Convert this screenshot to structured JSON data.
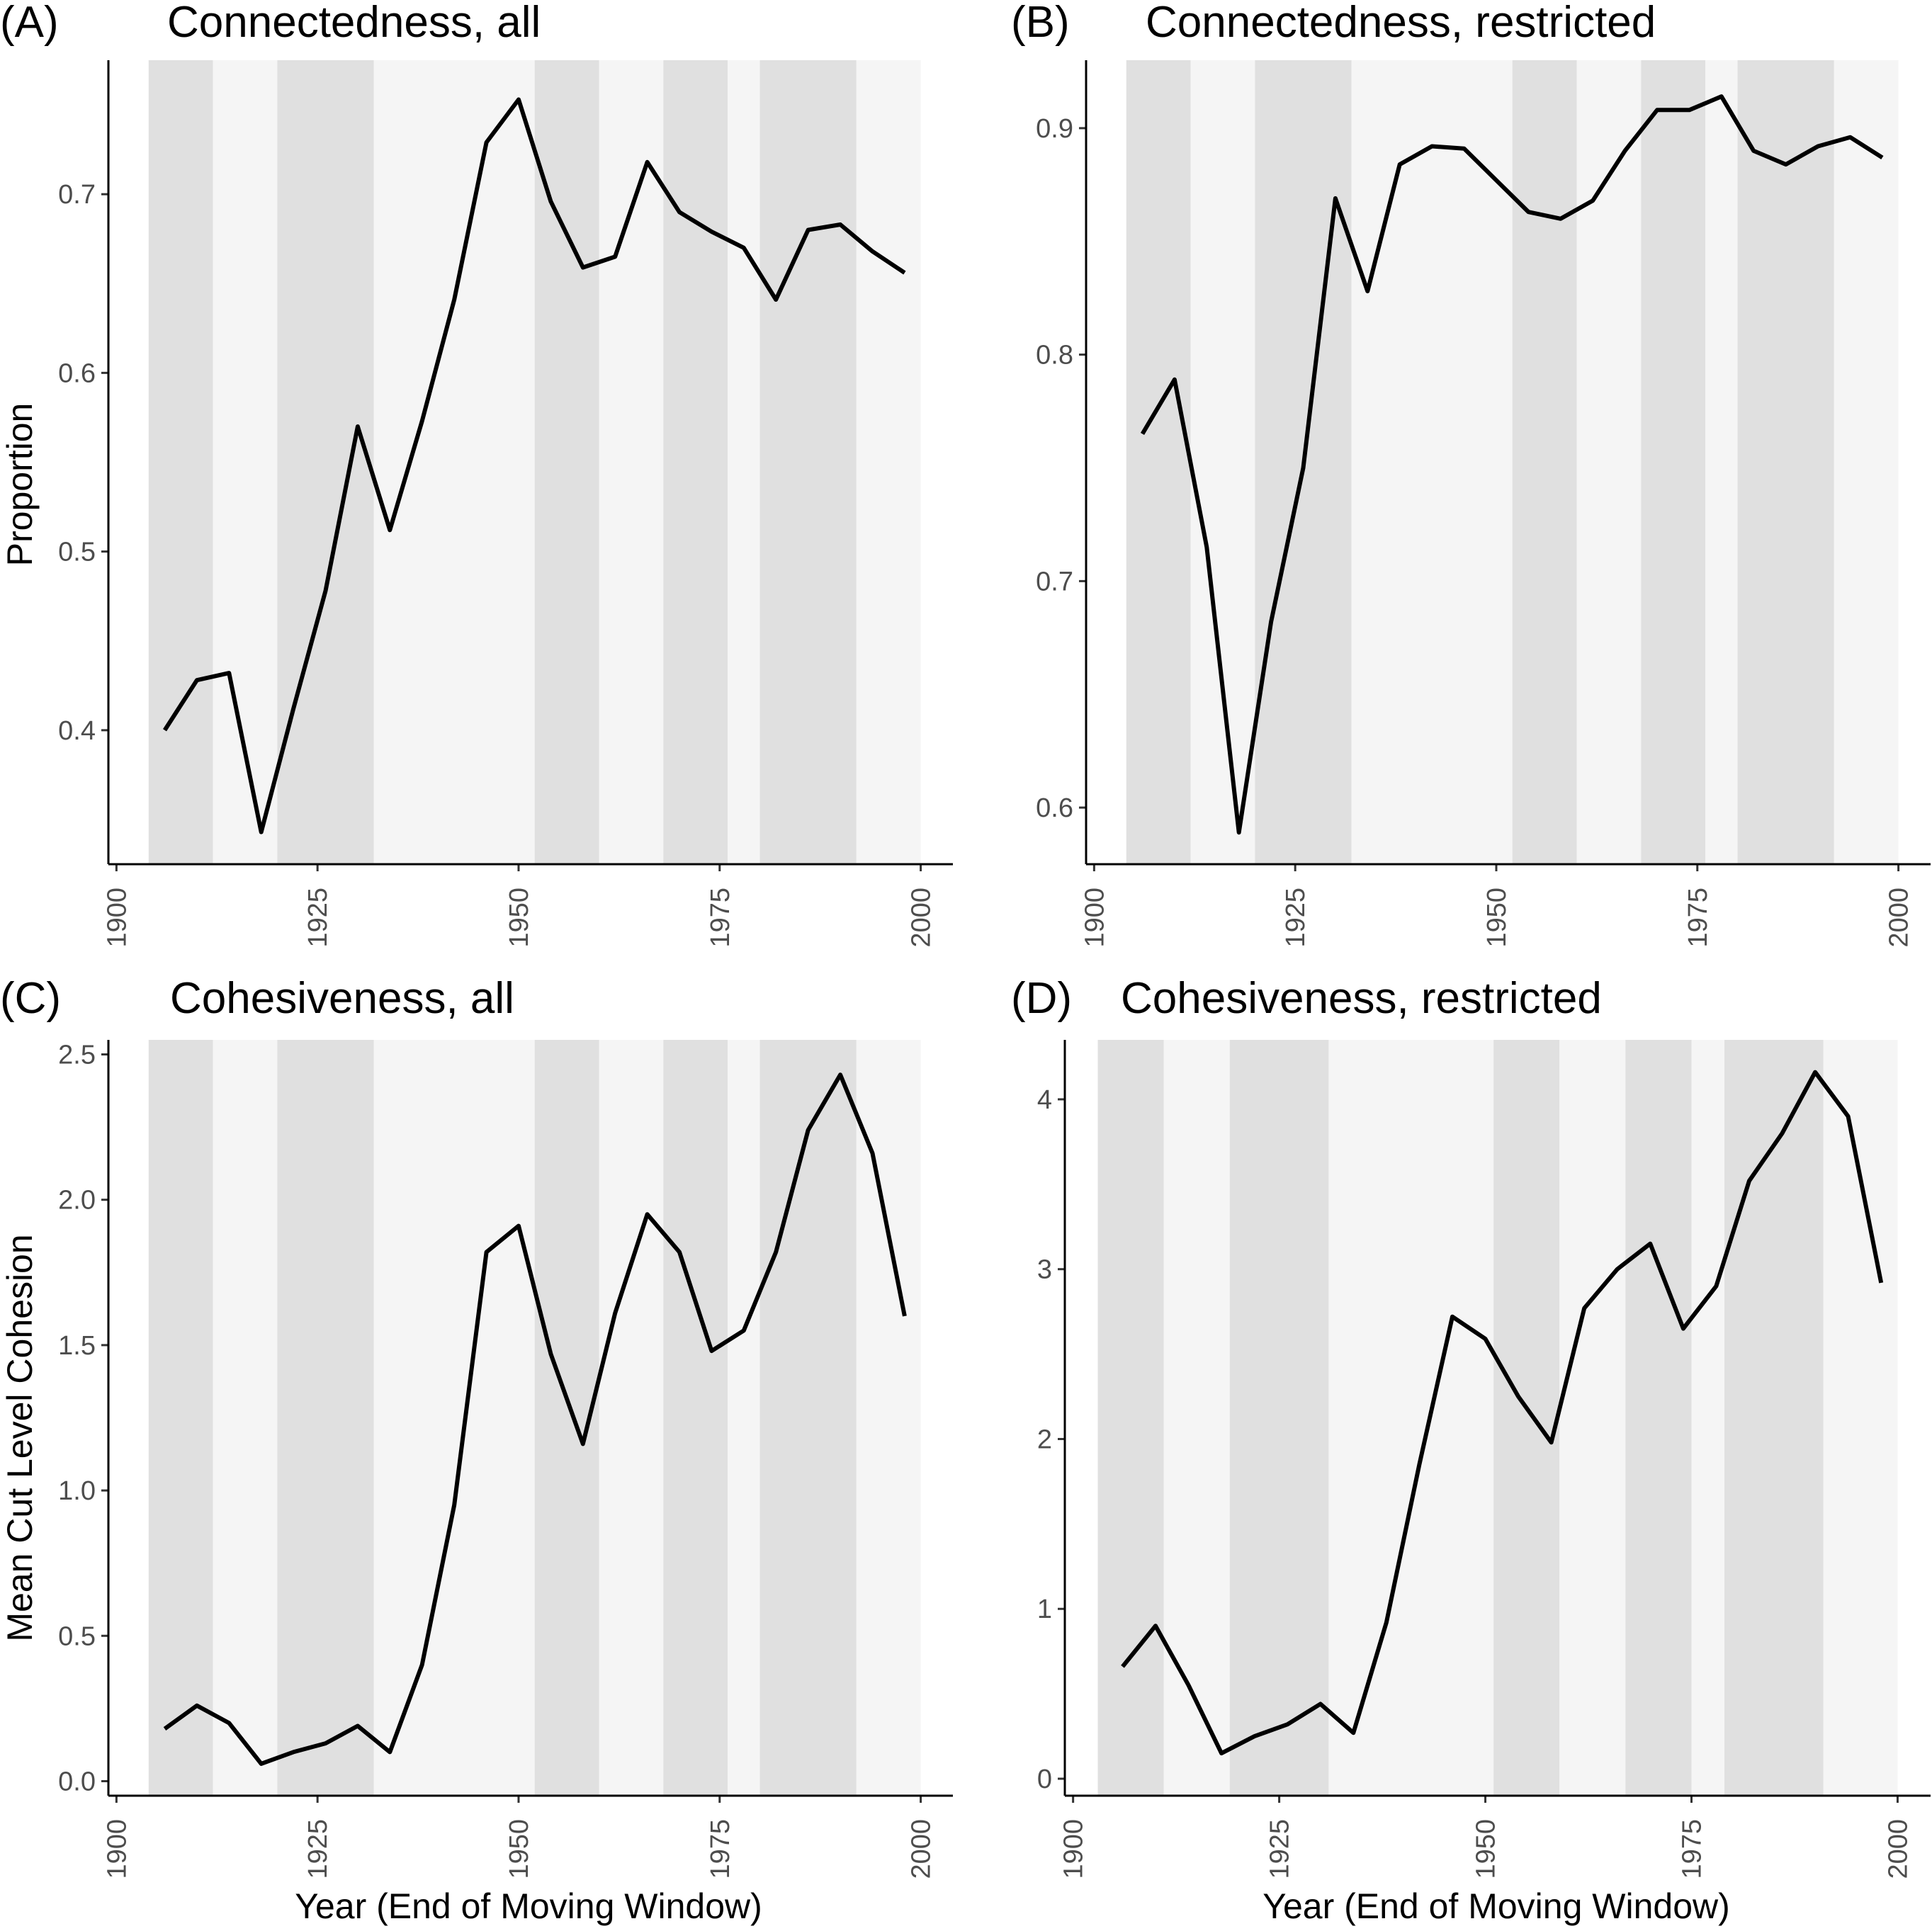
{
  "figure": {
    "x_axis_title": "Year (End of Moving Window)",
    "y_axis_title_top": "Proportion",
    "y_axis_title_bottom": "Mean Cut Level Cohesion"
  },
  "colors": {
    "line": "#000000",
    "band_light": "#f5f5f5",
    "band_dark": "#e0e0e0"
  },
  "chart_data": [
    {
      "id": "A",
      "type": "line",
      "panel_label": "(A)",
      "title": "Connectedness, all",
      "xlim": [
        1899,
        2004
      ],
      "ylim": [
        0.325,
        0.775
      ],
      "x_ticks": [
        1900,
        1925,
        1950,
        1975,
        2000
      ],
      "y_ticks": [
        0.4,
        0.5,
        0.6,
        0.7
      ],
      "y_tick_labels": [
        "0.4",
        "0.5",
        "0.6",
        "0.7"
      ],
      "bands": [
        [
          1904,
          1912,
          "dark"
        ],
        [
          1912,
          1920,
          "light"
        ],
        [
          1920,
          1932,
          "dark"
        ],
        [
          1932,
          1952,
          "light"
        ],
        [
          1952,
          1960,
          "dark"
        ],
        [
          1960,
          1968,
          "light"
        ],
        [
          1968,
          1976,
          "dark"
        ],
        [
          1976,
          1980,
          "light"
        ],
        [
          1980,
          1992,
          "dark"
        ],
        [
          1992,
          2000,
          "light"
        ]
      ],
      "x": [
        1906,
        1910,
        1914,
        1918,
        1922,
        1926,
        1930,
        1934,
        1938,
        1942,
        1946,
        1950,
        1954,
        1958,
        1962,
        1966,
        1970,
        1974,
        1978,
        1982,
        1986,
        1990,
        1994,
        1998
      ],
      "values": [
        0.4,
        0.428,
        0.432,
        0.343,
        0.412,
        0.478,
        0.57,
        0.512,
        0.573,
        0.641,
        0.729,
        0.753,
        0.696,
        0.659,
        0.665,
        0.718,
        0.69,
        0.679,
        0.67,
        0.641,
        0.68,
        0.683,
        0.668,
        0.656
      ]
    },
    {
      "id": "B",
      "type": "line",
      "panel_label": "(B)",
      "title": "Connectedness, restricted",
      "xlim": [
        1899,
        2004
      ],
      "ylim": [
        0.575,
        0.93
      ],
      "x_ticks": [
        1900,
        1925,
        1950,
        1975,
        2000
      ],
      "y_ticks": [
        0.6,
        0.7,
        0.8,
        0.9
      ],
      "y_tick_labels": [
        "0.6",
        "0.7",
        "0.8",
        "0.9"
      ],
      "bands": [
        [
          1904,
          1912,
          "dark"
        ],
        [
          1912,
          1920,
          "light"
        ],
        [
          1920,
          1932,
          "dark"
        ],
        [
          1932,
          1952,
          "light"
        ],
        [
          1952,
          1960,
          "dark"
        ],
        [
          1960,
          1968,
          "light"
        ],
        [
          1968,
          1976,
          "dark"
        ],
        [
          1976,
          1980,
          "light"
        ],
        [
          1980,
          1992,
          "dark"
        ],
        [
          1992,
          2000,
          "light"
        ]
      ],
      "x": [
        1906,
        1910,
        1914,
        1918,
        1922,
        1926,
        1930,
        1934,
        1938,
        1942,
        1946,
        1950,
        1954,
        1958,
        1962,
        1966,
        1970,
        1974,
        1978,
        1982,
        1986,
        1990,
        1994,
        1998
      ],
      "values": [
        0.765,
        0.789,
        0.715,
        0.589,
        0.682,
        0.75,
        0.869,
        0.828,
        0.884,
        0.892,
        0.891,
        0.877,
        0.863,
        0.86,
        0.868,
        0.89,
        0.908,
        0.908,
        0.914,
        0.89,
        0.884,
        0.892,
        0.896,
        0.887
      ]
    },
    {
      "id": "C",
      "type": "line",
      "panel_label": "(C)",
      "title": "Cohesiveness, all",
      "xlim": [
        1899,
        2004
      ],
      "ylim": [
        -0.05,
        2.55
      ],
      "x_ticks": [
        1900,
        1925,
        1950,
        1975,
        2000
      ],
      "y_ticks": [
        0.0,
        0.5,
        1.0,
        1.5,
        2.0,
        2.5
      ],
      "y_tick_labels": [
        "0.0",
        "0.5",
        "1.0",
        "1.5",
        "2.0",
        "2.5"
      ],
      "bands": [
        [
          1904,
          1912,
          "dark"
        ],
        [
          1912,
          1920,
          "light"
        ],
        [
          1920,
          1932,
          "dark"
        ],
        [
          1932,
          1952,
          "light"
        ],
        [
          1952,
          1960,
          "dark"
        ],
        [
          1960,
          1968,
          "light"
        ],
        [
          1968,
          1976,
          "dark"
        ],
        [
          1976,
          1980,
          "light"
        ],
        [
          1980,
          1992,
          "dark"
        ],
        [
          1992,
          2000,
          "light"
        ]
      ],
      "x": [
        1906,
        1910,
        1914,
        1918,
        1922,
        1926,
        1930,
        1934,
        1938,
        1942,
        1946,
        1950,
        1954,
        1958,
        1962,
        1966,
        1970,
        1974,
        1978,
        1982,
        1986,
        1990,
        1994,
        1998
      ],
      "values": [
        0.18,
        0.26,
        0.2,
        0.06,
        0.1,
        0.13,
        0.19,
        0.1,
        0.4,
        0.95,
        1.82,
        1.91,
        1.47,
        1.16,
        1.61,
        1.95,
        1.82,
        1.48,
        1.55,
        1.82,
        2.24,
        2.43,
        2.16,
        1.6
      ]
    },
    {
      "id": "D",
      "type": "line",
      "panel_label": "(D)",
      "title": "Cohesiveness, restricted",
      "xlim": [
        1899,
        2004
      ],
      "ylim": [
        -0.1,
        4.35
      ],
      "x_ticks": [
        1900,
        1925,
        1950,
        1975,
        2000
      ],
      "y_ticks": [
        0,
        1,
        2,
        3,
        4
      ],
      "y_tick_labels": [
        "0",
        "1",
        "2",
        "3",
        "4"
      ],
      "bands": [
        [
          1903,
          1911,
          "dark"
        ],
        [
          1911,
          1919,
          "light"
        ],
        [
          1919,
          1931,
          "dark"
        ],
        [
          1931,
          1951,
          "light"
        ],
        [
          1951,
          1959,
          "dark"
        ],
        [
          1959,
          1967,
          "light"
        ],
        [
          1967,
          1975,
          "dark"
        ],
        [
          1975,
          1979,
          "light"
        ],
        [
          1979,
          1991,
          "dark"
        ],
        [
          1991,
          2000,
          "light"
        ]
      ],
      "x": [
        1906,
        1910,
        1914,
        1918,
        1922,
        1926,
        1930,
        1934,
        1938,
        1942,
        1946,
        1950,
        1954,
        1958,
        1962,
        1966,
        1970,
        1974,
        1978,
        1982,
        1986,
        1990,
        1994,
        1998
      ],
      "values": [
        0.66,
        0.9,
        0.55,
        0.15,
        0.25,
        0.32,
        0.44,
        0.27,
        0.92,
        1.85,
        2.72,
        2.59,
        2.25,
        1.98,
        2.77,
        3.0,
        3.15,
        2.65,
        2.9,
        3.52,
        3.8,
        4.16,
        3.9,
        2.92
      ]
    }
  ]
}
